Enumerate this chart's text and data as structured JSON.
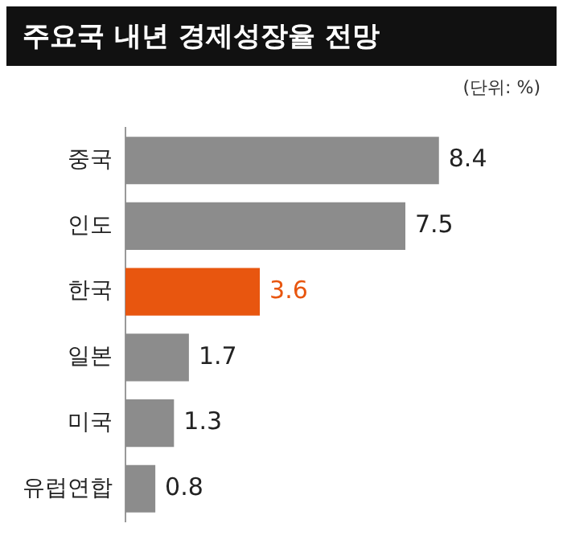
{
  "chart_data": {
    "type": "bar",
    "orientation": "horizontal",
    "title": "주요국 내년 경제성장율 전망",
    "annotations": [
      "(단위: %)"
    ],
    "categories": [
      "중국",
      "인도",
      "한국",
      "일본",
      "미국",
      "유럽연합"
    ],
    "values": [
      8.4,
      7.5,
      3.6,
      1.7,
      1.3,
      0.8
    ],
    "colors": [
      "#8c8c8c",
      "#8c8c8c",
      "#e8560f",
      "#8c8c8c",
      "#8c8c8c",
      "#8c8c8c"
    ],
    "data_labels": true,
    "legend": false
  }
}
